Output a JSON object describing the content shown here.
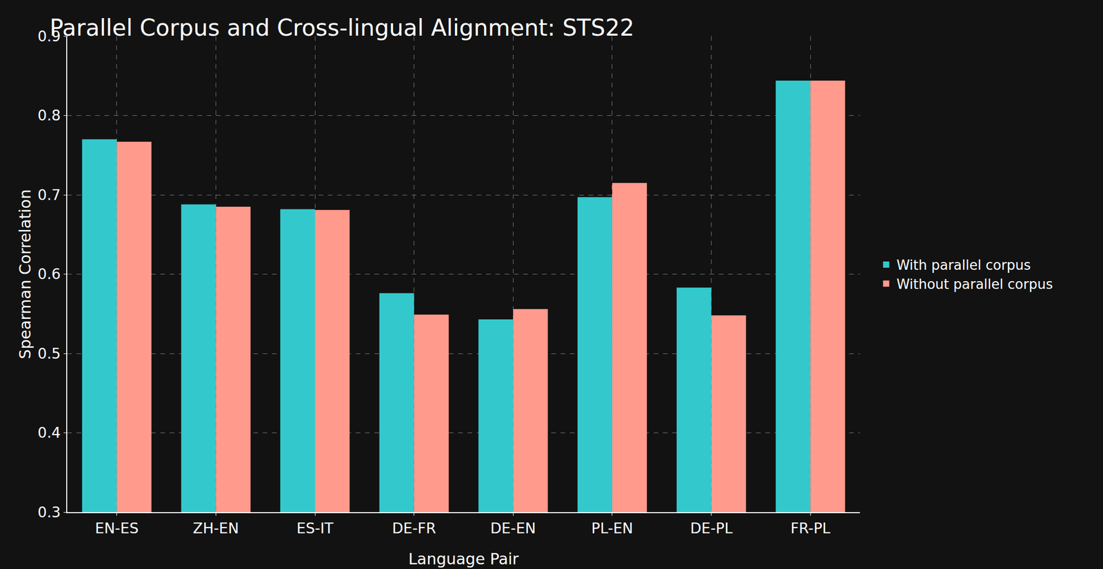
{
  "chart_data": {
    "type": "bar",
    "title": "Parallel Corpus and Cross-lingual Alignment: STS22",
    "x_label": "Language Pair",
    "y_label": "Spearman Correlation",
    "categories": [
      "EN-ES",
      "ZH-EN",
      "ES-IT",
      "DE-FR",
      "DE-EN",
      "PL-EN",
      "DE-PL",
      "FR-PL"
    ],
    "series": [
      {
        "name": "With parallel corpus",
        "color": "#33c9cc",
        "values": [
          0.77,
          0.688,
          0.682,
          0.576,
          0.543,
          0.697,
          0.583,
          0.844
        ]
      },
      {
        "name": "Without parallel corpus",
        "color": "#ff9a8d",
        "values": [
          0.767,
          0.685,
          0.681,
          0.549,
          0.556,
          0.715,
          0.548,
          0.844
        ]
      }
    ],
    "ylim": [
      0.3,
      0.9
    ],
    "yticks": [
      0.3,
      0.4,
      0.5,
      0.6,
      0.7,
      0.8,
      0.9
    ],
    "grid": true,
    "legend": "right"
  }
}
